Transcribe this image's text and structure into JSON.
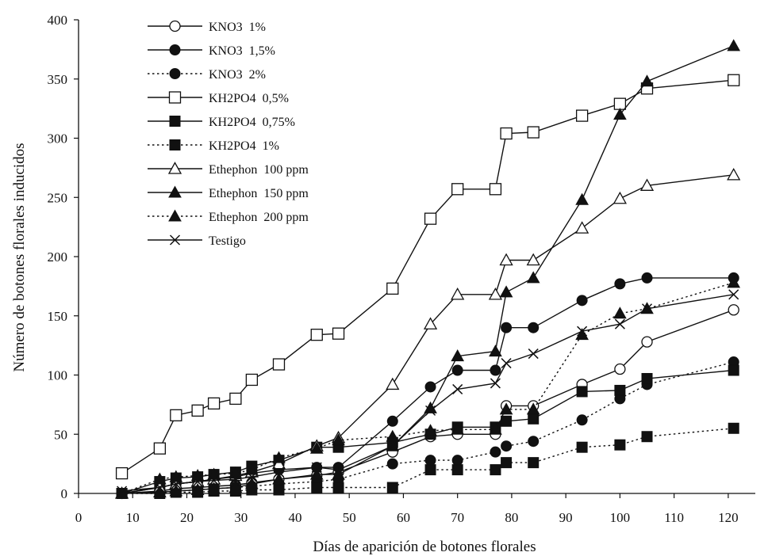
{
  "chart_data": {
    "type": "line",
    "xlabel": "Días de aparición de botones florales",
    "ylabel": "Número de botones florales  inducidos",
    "xlim": [
      0,
      125
    ],
    "ylim": [
      0,
      400
    ],
    "xticks": [
      "0",
      "10",
      "20",
      "30",
      "40",
      "50",
      "60",
      "70",
      "80",
      "90",
      "100",
      "110",
      "120"
    ],
    "yticks": [
      "0",
      "50",
      "100",
      "150",
      "200",
      "250",
      "300",
      "350",
      "400"
    ],
    "grid": false,
    "legend_position": "top-left",
    "series": [
      {
        "name": "KNO3  1%",
        "marker": "circle-open",
        "line": "solid",
        "x": [
          8,
          15,
          18,
          22,
          25,
          29,
          32,
          37,
          44,
          48,
          58,
          65,
          70,
          77,
          79,
          84,
          93,
          100,
          105,
          121
        ],
        "y": [
          0,
          2,
          4,
          5,
          6,
          7,
          9,
          12,
          15,
          18,
          35,
          48,
          50,
          50,
          74,
          74,
          92,
          105,
          128,
          155
        ]
      },
      {
        "name": "KNO3  1,5%",
        "marker": "circle-filled",
        "line": "solid",
        "x": [
          8,
          15,
          18,
          22,
          25,
          29,
          32,
          37,
          44,
          48,
          58,
          65,
          70,
          77,
          79,
          84,
          93,
          100,
          105,
          121
        ],
        "y": [
          0,
          5,
          8,
          10,
          12,
          14,
          17,
          20,
          22,
          22,
          61,
          90,
          104,
          104,
          140,
          140,
          163,
          177,
          182,
          182
        ]
      },
      {
        "name": "KNO3  2%",
        "marker": "circle-filled",
        "line": "dotted",
        "x": [
          8,
          15,
          18,
          22,
          25,
          29,
          32,
          37,
          44,
          48,
          58,
          65,
          70,
          77,
          79,
          84,
          93,
          100,
          105,
          121
        ],
        "y": [
          0,
          1,
          2,
          3,
          4,
          5,
          6,
          8,
          10,
          12,
          25,
          28,
          28,
          35,
          40,
          44,
          62,
          80,
          92,
          111
        ]
      },
      {
        "name": "KH2PO4  0,5%",
        "marker": "square-open",
        "line": "solid",
        "x": [
          8,
          15,
          18,
          22,
          25,
          29,
          32,
          37,
          44,
          48,
          58,
          65,
          70,
          77,
          79,
          84,
          93,
          100,
          105,
          121
        ],
        "y": [
          17,
          38,
          66,
          70,
          76,
          80,
          96,
          109,
          134,
          135,
          173,
          232,
          257,
          257,
          304,
          305,
          319,
          329,
          342,
          349
        ]
      },
      {
        "name": "KH2PO4  0,75%",
        "marker": "square-filled",
        "line": "solid",
        "x": [
          8,
          15,
          18,
          22,
          25,
          29,
          32,
          37,
          44,
          48,
          58,
          65,
          70,
          77,
          79,
          84,
          93,
          100,
          105,
          121
        ],
        "y": [
          0,
          10,
          13,
          14,
          16,
          18,
          23,
          28,
          39,
          39,
          43,
          50,
          56,
          56,
          61,
          63,
          86,
          87,
          97,
          104
        ]
      },
      {
        "name": "KH2PO4  1%",
        "marker": "square-filled",
        "line": "dotted",
        "x": [
          8,
          15,
          18,
          22,
          25,
          29,
          32,
          37,
          44,
          48,
          58,
          65,
          70,
          77,
          79,
          84,
          93,
          100,
          105,
          121
        ],
        "y": [
          0,
          0,
          1,
          1,
          2,
          2,
          3,
          3,
          5,
          5,
          5,
          20,
          20,
          20,
          26,
          26,
          39,
          41,
          48,
          55
        ]
      },
      {
        "name": "Ethephon  100 ppm",
        "marker": "triangle-open",
        "line": "solid",
        "x": [
          8,
          15,
          18,
          22,
          25,
          29,
          32,
          37,
          44,
          48,
          58,
          65,
          70,
          77,
          79,
          84,
          93,
          100,
          105,
          121
        ],
        "y": [
          0,
          5,
          8,
          10,
          12,
          15,
          18,
          25,
          40,
          47,
          92,
          143,
          168,
          168,
          197,
          197,
          224,
          249,
          260,
          269
        ]
      },
      {
        "name": "Ethephon  150 ppm",
        "marker": "triangle-filled",
        "line": "solid",
        "x": [
          8,
          15,
          18,
          22,
          25,
          29,
          32,
          37,
          44,
          48,
          58,
          65,
          70,
          77,
          79,
          84,
          93,
          100,
          105,
          121
        ],
        "y": [
          0,
          1,
          2,
          3,
          4,
          5,
          8,
          12,
          16,
          16,
          40,
          72,
          116,
          120,
          170,
          182,
          248,
          320,
          348,
          378
        ]
      },
      {
        "name": "Ethephon  200 ppm",
        "marker": "triangle-filled",
        "line": "dotted",
        "x": [
          8,
          15,
          18,
          22,
          25,
          29,
          32,
          37,
          44,
          48,
          58,
          65,
          70,
          77,
          79,
          84,
          93,
          100,
          105,
          121
        ],
        "y": [
          0,
          12,
          14,
          15,
          16,
          17,
          20,
          30,
          38,
          45,
          48,
          53,
          54,
          54,
          71,
          71,
          134,
          152,
          156,
          178
        ]
      },
      {
        "name": "Testigo",
        "marker": "x",
        "line": "solid",
        "x": [
          8,
          15,
          18,
          22,
          25,
          29,
          32,
          37,
          44,
          48,
          58,
          65,
          70,
          77,
          79,
          84,
          93,
          100,
          105,
          121
        ],
        "y": [
          2,
          5,
          8,
          10,
          11,
          12,
          14,
          18,
          22,
          20,
          40,
          70,
          88,
          93,
          110,
          118,
          137,
          143,
          156,
          168
        ]
      }
    ]
  }
}
